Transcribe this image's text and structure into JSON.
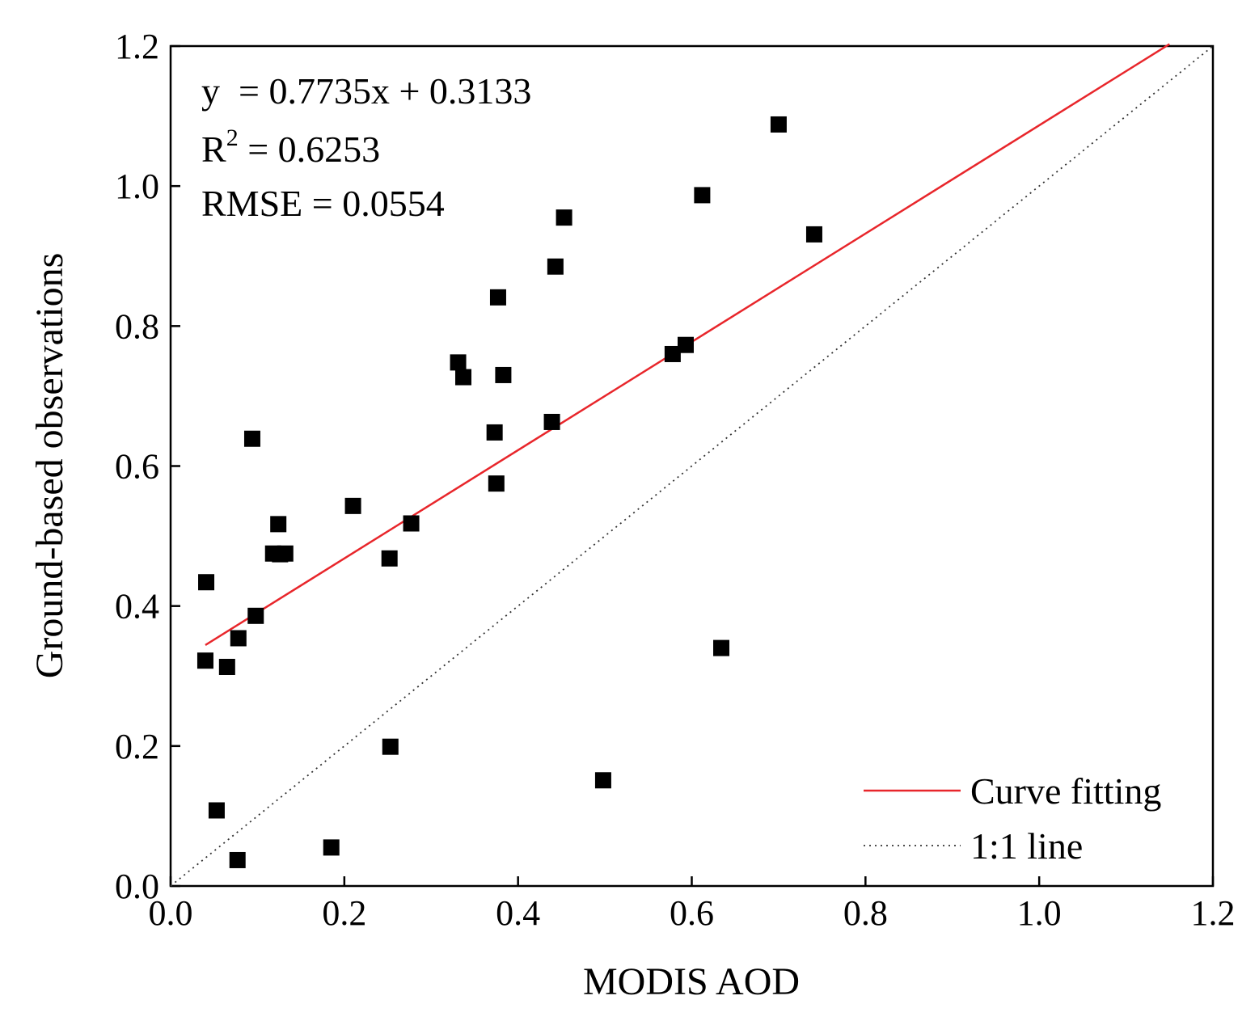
{
  "chart_data": {
    "type": "scatter",
    "xlabel": "MODIS AOD",
    "ylabel": "Ground-based observations",
    "xlim": [
      0.0,
      1.2
    ],
    "ylim": [
      0.0,
      1.2
    ],
    "x_ticks": [
      "0.0",
      "0.2",
      "0.4",
      "0.6",
      "0.8",
      "1.0",
      "1.2"
    ],
    "y_ticks": [
      "0.0",
      "0.2",
      "0.4",
      "0.6",
      "0.8",
      "1.0",
      "1.2"
    ],
    "points": [
      {
        "x": 0.04,
        "y": 0.322
      },
      {
        "x": 0.041,
        "y": 0.434
      },
      {
        "x": 0.053,
        "y": 0.108
      },
      {
        "x": 0.065,
        "y": 0.313
      },
      {
        "x": 0.077,
        "y": 0.037
      },
      {
        "x": 0.078,
        "y": 0.354
      },
      {
        "x": 0.094,
        "y": 0.639
      },
      {
        "x": 0.098,
        "y": 0.386
      },
      {
        "x": 0.118,
        "y": 0.475
      },
      {
        "x": 0.124,
        "y": 0.517
      },
      {
        "x": 0.126,
        "y": 0.474
      },
      {
        "x": 0.132,
        "y": 0.475
      },
      {
        "x": 0.185,
        "y": 0.055
      },
      {
        "x": 0.21,
        "y": 0.543
      },
      {
        "x": 0.252,
        "y": 0.468
      },
      {
        "x": 0.253,
        "y": 0.199
      },
      {
        "x": 0.277,
        "y": 0.518
      },
      {
        "x": 0.331,
        "y": 0.748
      },
      {
        "x": 0.337,
        "y": 0.727
      },
      {
        "x": 0.373,
        "y": 0.648
      },
      {
        "x": 0.375,
        "y": 0.575
      },
      {
        "x": 0.377,
        "y": 0.841
      },
      {
        "x": 0.383,
        "y": 0.73
      },
      {
        "x": 0.439,
        "y": 0.663
      },
      {
        "x": 0.443,
        "y": 0.885
      },
      {
        "x": 0.453,
        "y": 0.955
      },
      {
        "x": 0.498,
        "y": 0.151
      },
      {
        "x": 0.578,
        "y": 0.76
      },
      {
        "x": 0.593,
        "y": 0.773
      },
      {
        "x": 0.612,
        "y": 0.987
      },
      {
        "x": 0.634,
        "y": 0.34
      },
      {
        "x": 0.7,
        "y": 1.088
      },
      {
        "x": 0.741,
        "y": 0.931
      }
    ],
    "fit_line": {
      "name": "Curve fitting",
      "slope": 0.7735,
      "intercept": 0.3133,
      "x_range": [
        0.04,
        1.15
      ],
      "color": "#e8262b"
    },
    "identity_line": {
      "name": "1:1 line",
      "x_range": [
        0.0,
        1.2
      ],
      "color": "#333333"
    },
    "annotations": {
      "equation": "y  = 0.7735x + 0.3133",
      "r2_label": "R",
      "r2_sup": "2",
      "r2_value": " = 0.6253",
      "rmse": "RMSE = 0.0554"
    },
    "legend": {
      "position": "bottom-right",
      "items": [
        {
          "label": "Curve fitting",
          "style": "solid",
          "color": "#e8262b"
        },
        {
          "label": "1:1 line",
          "style": "dotted",
          "color": "#333333"
        }
      ]
    },
    "marker": {
      "shape": "square",
      "color": "#000000"
    }
  }
}
